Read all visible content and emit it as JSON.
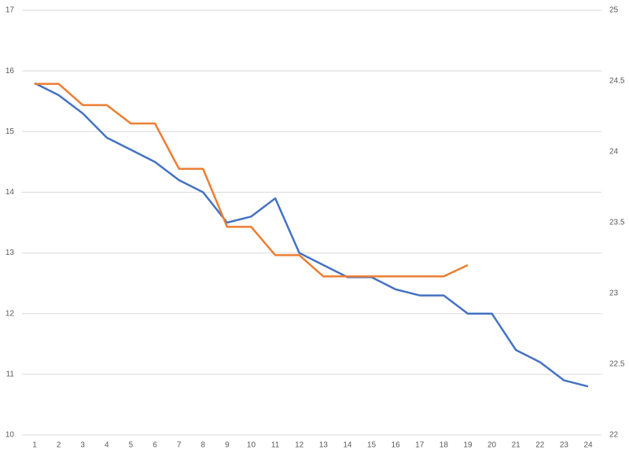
{
  "chart_data": {
    "type": "line",
    "categories": [
      "1",
      "2",
      "3",
      "4",
      "5",
      "6",
      "7",
      "8",
      "9",
      "10",
      "11",
      "12",
      "13",
      "14",
      "15",
      "16",
      "17",
      "18",
      "19",
      "20",
      "21",
      "22",
      "23",
      "24"
    ],
    "series": [
      {
        "color": "#4472c4",
        "axis": "y",
        "values": [
          15.8,
          15.6,
          15.3,
          14.9,
          14.7,
          14.5,
          14.2,
          14.0,
          13.5,
          13.6,
          13.9,
          13.0,
          12.8,
          12.6,
          12.6,
          12.4,
          12.3,
          12.3,
          12.0,
          12.0,
          11.4,
          11.2,
          10.9,
          10.8
        ]
      },
      {
        "color": "#ed7d31",
        "axis": "y2",
        "values": [
          24.48,
          24.48,
          24.33,
          24.33,
          24.2,
          24.2,
          23.88,
          23.88,
          23.47,
          23.47,
          23.27,
          23.27,
          23.12,
          23.12,
          23.12,
          23.12,
          23.12,
          23.12,
          23.2,
          null,
          null,
          null,
          null,
          null
        ]
      }
    ],
    "ylim": [
      10,
      17
    ],
    "yticks": [
      10,
      11,
      12,
      13,
      14,
      15,
      16,
      17
    ],
    "y2lim": [
      22,
      25
    ],
    "y2ticks": [
      22,
      22.5,
      23,
      23.5,
      24,
      24.5,
      25
    ],
    "grid": true
  }
}
